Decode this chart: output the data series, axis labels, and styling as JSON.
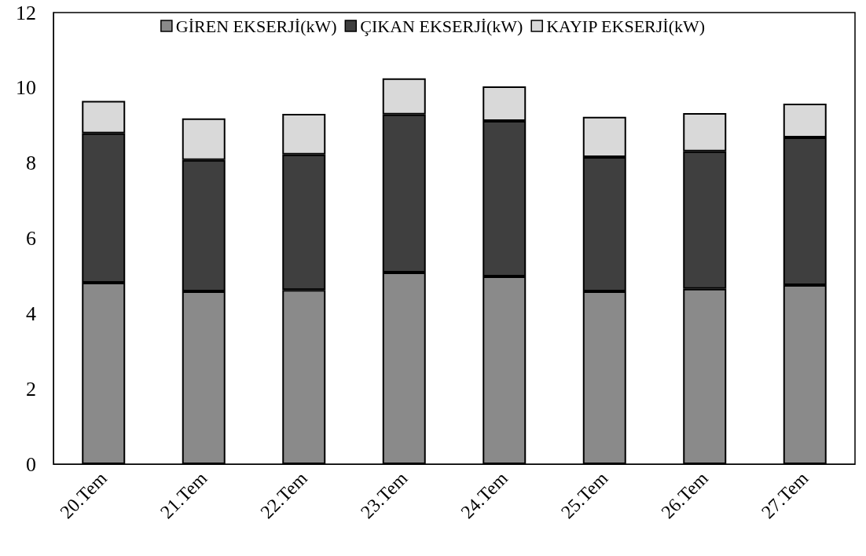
{
  "chart_data": {
    "type": "bar",
    "stacked": true,
    "categories": [
      "20.Tem",
      "21.Tem",
      "22.Tem",
      "23.Tem",
      "24.Tem",
      "25.Tem",
      "26.Tem",
      "27.Tem"
    ],
    "series": [
      {
        "name": "GİREN EKSERJİ(kW)",
        "color": "#8a8a8a",
        "values": [
          4.82,
          4.59,
          4.63,
          5.09,
          4.99,
          4.59,
          4.66,
          4.76
        ]
      },
      {
        "name": "ÇIKAN EKSERJİ(kW)",
        "color": "#3f3f3f",
        "values": [
          3.97,
          3.49,
          3.6,
          4.2,
          4.13,
          3.57,
          3.65,
          3.92
        ]
      },
      {
        "name": "KAYIP EKSERJİ(kW)",
        "color": "#d9d9d9",
        "values": [
          0.86,
          1.11,
          1.08,
          0.96,
          0.92,
          1.07,
          1.02,
          0.9
        ]
      }
    ],
    "ylim": [
      0,
      12
    ],
    "yticks": [
      0,
      2,
      4,
      6,
      8,
      10,
      12
    ],
    "grid": false,
    "legend": "top"
  }
}
